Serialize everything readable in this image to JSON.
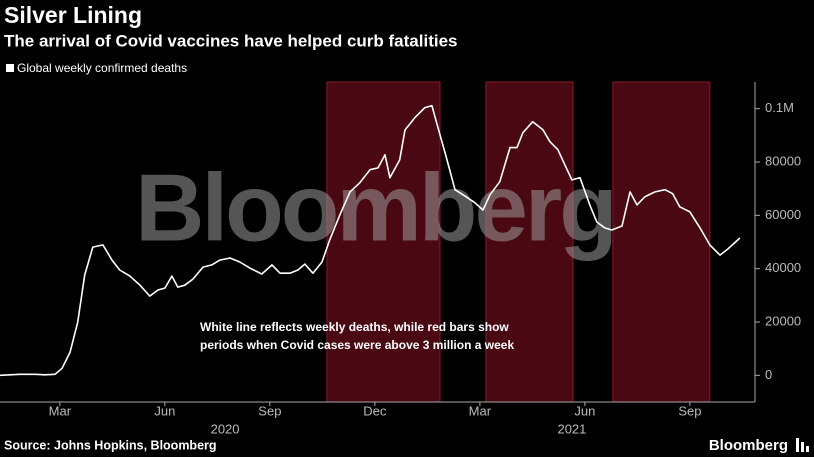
{
  "chart_data": {
    "type": "line",
    "title": "Silver Lining",
    "subtitle": "The arrival of Covid vaccines have helped curb fatalities",
    "watermark": "Bloomberg",
    "annotation": [
      "White line reflects weekly deaths, while red bars show",
      "periods when Covid cases were above 3 million a week"
    ],
    "source": "Source: Johns Hopkins, Bloomberg",
    "logo": "Bloomberg",
    "x": [
      1.29,
      1.86,
      2.29,
      2.57,
      2.86,
      3.06,
      3.29,
      3.51,
      3.71,
      3.94,
      4.23,
      4.49,
      4.71,
      5.0,
      5.29,
      5.57,
      5.8,
      6.0,
      6.2,
      6.37,
      6.57,
      6.8,
      7.09,
      7.34,
      7.57,
      7.86,
      8.14,
      8.43,
      8.77,
      9.06,
      9.29,
      9.57,
      9.8,
      10.0,
      10.23,
      10.49,
      10.71,
      11.0,
      11.29,
      11.57,
      11.86,
      12.09,
      12.29,
      12.43,
      12.71,
      12.86,
      13.14,
      13.43,
      13.63,
      13.86,
      14.06,
      14.29,
      14.57,
      14.86,
      15.09,
      15.29,
      15.57,
      15.86,
      16.06,
      16.23,
      16.51,
      16.8,
      17.0,
      17.23,
      17.43,
      17.63,
      17.86,
      18.14,
      18.34,
      18.57,
      18.77,
      19.06,
      19.29,
      19.49,
      19.71,
      20.0,
      20.29,
      20.51,
      20.71,
      21.0,
      21.29,
      21.57,
      21.86,
      22.09,
      22.43
    ],
    "series": [
      {
        "name": "Global weekly confirmed deaths",
        "color": "#ffffff",
        "values": [
          0,
          400,
          400,
          200,
          400,
          2600,
          8600,
          19900,
          37600,
          48100,
          48900,
          43200,
          39500,
          37200,
          33800,
          29700,
          32000,
          32700,
          37200,
          33100,
          33800,
          36100,
          40600,
          41400,
          43200,
          44000,
          42500,
          40200,
          38000,
          41400,
          38300,
          38300,
          39500,
          41700,
          38300,
          42500,
          50800,
          60200,
          68800,
          72200,
          77100,
          77800,
          82700,
          74100,
          80800,
          92000,
          96600,
          100400,
          101100,
          90200,
          80800,
          69600,
          67300,
          64700,
          62000,
          67700,
          72600,
          85400,
          85400,
          91000,
          95100,
          92100,
          87600,
          84600,
          78900,
          73300,
          74100,
          63900,
          57500,
          55300,
          54500,
          56000,
          68800,
          63900,
          66900,
          68800,
          69600,
          68100,
          63200,
          61300,
          55300,
          48900,
          45100,
          47400,
          51500
        ]
      }
    ],
    "shaded_periods": [
      {
        "start": 10.63,
        "end": 13.86
      },
      {
        "start": 15.17,
        "end": 17.66
      },
      {
        "start": 18.8,
        "end": 21.57
      }
    ],
    "shade_color": "#4a0812",
    "xlim": [
      1.29,
      22.86
    ],
    "xticks": [
      {
        "value": 3,
        "label": "Mar"
      },
      {
        "value": 6,
        "label": "Jun"
      },
      {
        "value": 9,
        "label": "Sep"
      },
      {
        "value": 12,
        "label": "Dec"
      },
      {
        "value": 15,
        "label": "Mar"
      },
      {
        "value": 18,
        "label": "Jun"
      },
      {
        "value": 21,
        "label": "Sep"
      }
    ],
    "x_year_ticks": [
      {
        "value": 7.72,
        "label": "2020"
      },
      {
        "value": 17.63,
        "label": "2021"
      }
    ],
    "ylim": [
      -10000,
      110000
    ],
    "yticks": [
      0,
      20000,
      40000,
      60000,
      80000,
      {
        "value": 100000,
        "label": "0.1M"
      }
    ]
  }
}
